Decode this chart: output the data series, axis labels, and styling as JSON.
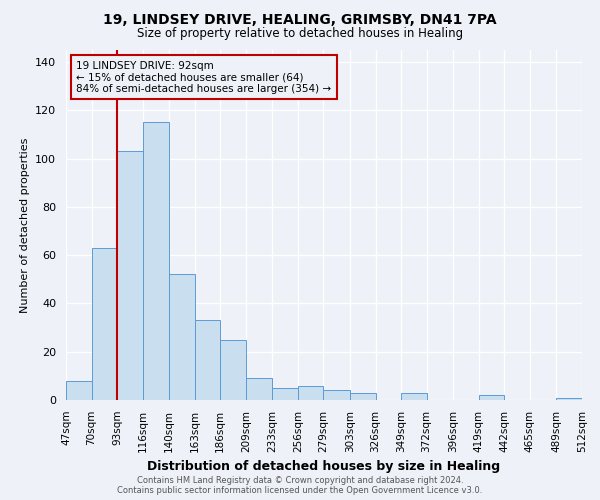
{
  "title": "19, LINDSEY DRIVE, HEALING, GRIMSBY, DN41 7PA",
  "subtitle": "Size of property relative to detached houses in Healing",
  "xlabel": "Distribution of detached houses by size in Healing",
  "ylabel": "Number of detached properties",
  "bar_edges": [
    47,
    70,
    93,
    116,
    140,
    163,
    186,
    209,
    233,
    256,
    279,
    303,
    326,
    349,
    372,
    396,
    419,
    442,
    465,
    489,
    512
  ],
  "bar_heights": [
    8,
    63,
    103,
    115,
    52,
    33,
    25,
    9,
    5,
    6,
    4,
    3,
    0,
    3,
    0,
    0,
    2,
    0,
    0,
    1
  ],
  "tick_labels": [
    "47sqm",
    "70sqm",
    "93sqm",
    "116sqm",
    "140sqm",
    "163sqm",
    "186sqm",
    "209sqm",
    "233sqm",
    "256sqm",
    "279sqm",
    "303sqm",
    "326sqm",
    "349sqm",
    "372sqm",
    "396sqm",
    "419sqm",
    "442sqm",
    "465sqm",
    "489sqm",
    "512sqm"
  ],
  "bar_color": "#c9dff0",
  "bar_edge_color": "#5b9bd5",
  "ylim": [
    0,
    145
  ],
  "yticks": [
    0,
    20,
    40,
    60,
    80,
    100,
    120,
    140
  ],
  "vline_x": 93,
  "vline_color": "#c00000",
  "annotation_title": "19 LINDSEY DRIVE: 92sqm",
  "annotation_line1": "← 15% of detached houses are smaller (64)",
  "annotation_line2": "84% of semi-detached houses are larger (354) →",
  "annotation_box_color": "#c00000",
  "footnote1": "Contains HM Land Registry data © Crown copyright and database right 2024.",
  "footnote2": "Contains public sector information licensed under the Open Government Licence v3.0.",
  "background_color": "#eef2f8"
}
